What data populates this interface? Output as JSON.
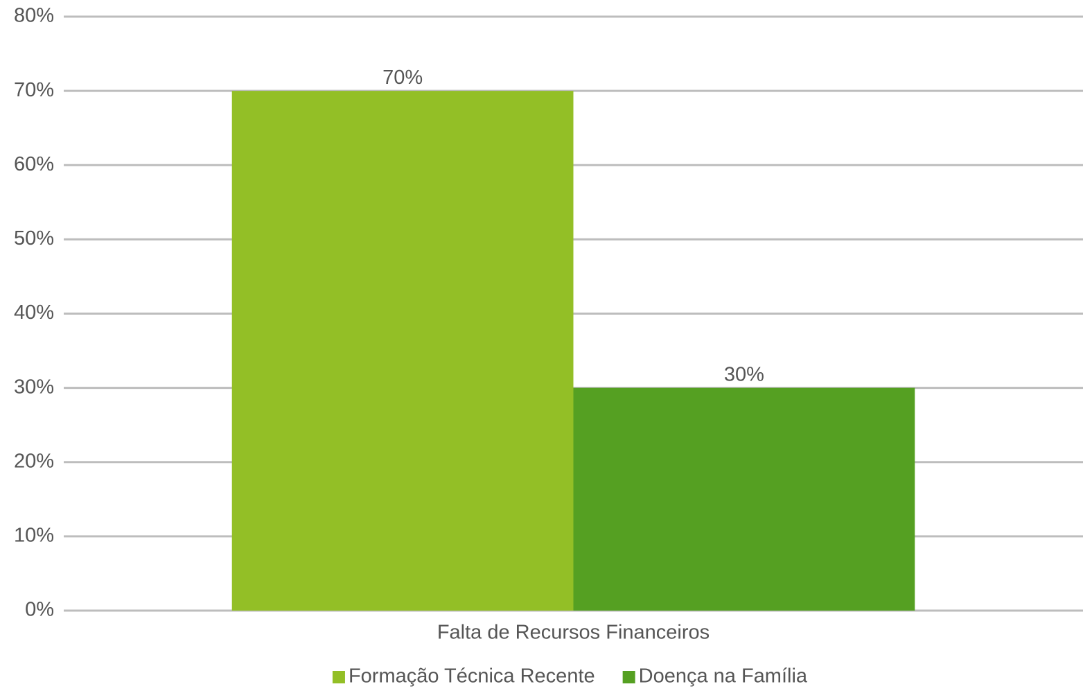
{
  "chart_data": {
    "type": "bar",
    "categories": [
      "Falta de Recursos Financeiros"
    ],
    "series": [
      {
        "name": "Formação Técnica Recente",
        "color": "#93bf26",
        "values": [
          70
        ],
        "value_labels": [
          "70%"
        ]
      },
      {
        "name": "Doença na Família",
        "color": "#55a022",
        "values": [
          30
        ],
        "value_labels": [
          "30%"
        ]
      }
    ],
    "ylim": [
      0,
      80
    ],
    "yticks": [
      {
        "value": 0,
        "label": "0%"
      },
      {
        "value": 10,
        "label": "10%"
      },
      {
        "value": 20,
        "label": "20%"
      },
      {
        "value": 30,
        "label": "30%"
      },
      {
        "value": 40,
        "label": "40%"
      },
      {
        "value": 50,
        "label": "50%"
      },
      {
        "value": 60,
        "label": "60%"
      },
      {
        "value": 70,
        "label": "70%"
      },
      {
        "value": 80,
        "label": "80%"
      }
    ],
    "grid": true,
    "legend": "bottom"
  }
}
